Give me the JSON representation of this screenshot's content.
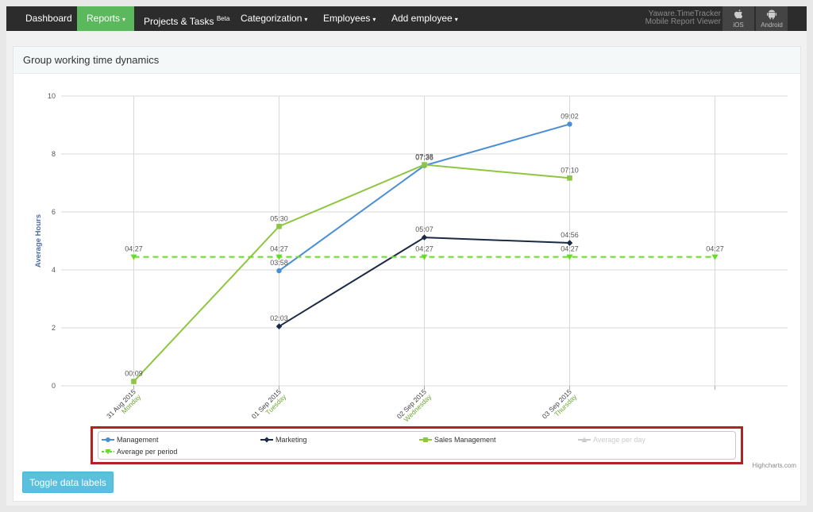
{
  "navbar": {
    "items": [
      {
        "label": "Dashboard",
        "active": false,
        "caret": ""
      },
      {
        "label": "Reports",
        "active": true,
        "caret": "▾"
      },
      {
        "label": "Projects & Tasks",
        "badge": "Beta",
        "active": false,
        "caret": ""
      },
      {
        "label": "Categorization",
        "active": false,
        "caret": "▾"
      },
      {
        "label": "Employees",
        "active": false,
        "caret": "▾"
      },
      {
        "label": "Add employee",
        "active": false,
        "caret": "▾"
      }
    ],
    "brand_line1": "Yaware.TimeTracker",
    "brand_line2": "Mobile Report Viewer",
    "ios_label": "iOS",
    "android_label": "Android",
    "colors": {
      "bar": "#2c2c2c",
      "active": "#5cb85c"
    }
  },
  "panel": {
    "title": "Group working time dynamics"
  },
  "credit": "Highcharts.com",
  "toggle_button": "Toggle data labels",
  "legend": [
    {
      "name": "Management",
      "color": "#4a8fd6",
      "marker": "circle",
      "visible": true
    },
    {
      "name": "Marketing",
      "color": "#1b2a44",
      "marker": "diamond",
      "visible": true
    },
    {
      "name": "Sales Management",
      "color": "#8dc63f",
      "marker": "square",
      "visible": true
    },
    {
      "name": "Average per day",
      "color": "#cccccc",
      "marker": "triangle",
      "visible": false
    },
    {
      "name": "Average per period",
      "color": "#66dd22",
      "marker": "triangle-down",
      "visible": true
    }
  ],
  "chart_data": {
    "type": "line",
    "ylabel": "Average Hours",
    "ylim": [
      0,
      10
    ],
    "yticks": [
      0,
      2,
      4,
      6,
      8,
      10
    ],
    "grid": true,
    "categories": [
      {
        "date": "31 Aug 2015",
        "day": "Monday"
      },
      {
        "date": "01 Sep 2015",
        "day": "Tuesday"
      },
      {
        "date": "02 Sep 2015",
        "day": "Wednesday"
      },
      {
        "date": "03 Sep 2015",
        "day": "Thursday"
      },
      {
        "date": "",
        "day": ""
      }
    ],
    "series": [
      {
        "name": "Management",
        "color": "#4a8fd6",
        "marker": "circle",
        "dashed": false,
        "values": [
          null,
          3.97,
          7.6,
          9.03,
          null
        ],
        "labels": [
          null,
          "03:58",
          "07:36",
          "09:02",
          null
        ]
      },
      {
        "name": "Marketing",
        "color": "#1b2a44",
        "marker": "diamond",
        "dashed": false,
        "values": [
          null,
          2.05,
          5.12,
          4.93,
          null
        ],
        "labels": [
          null,
          "02:03",
          "05:07",
          "04:56",
          null
        ]
      },
      {
        "name": "Sales Management",
        "color": "#8dc63f",
        "marker": "square",
        "dashed": false,
        "values": [
          0.15,
          5.5,
          7.63,
          7.17,
          null
        ],
        "labels": [
          "00:09",
          "05:30",
          "07:38",
          "07:10",
          null
        ]
      },
      {
        "name": "Average per period",
        "color": "#66dd22",
        "marker": "triangle-down",
        "dashed": true,
        "values": [
          4.45,
          4.45,
          4.45,
          4.45,
          4.45
        ],
        "labels": [
          "04:27",
          "04:27",
          "04:27",
          "04:27",
          "04:27"
        ]
      }
    ]
  }
}
